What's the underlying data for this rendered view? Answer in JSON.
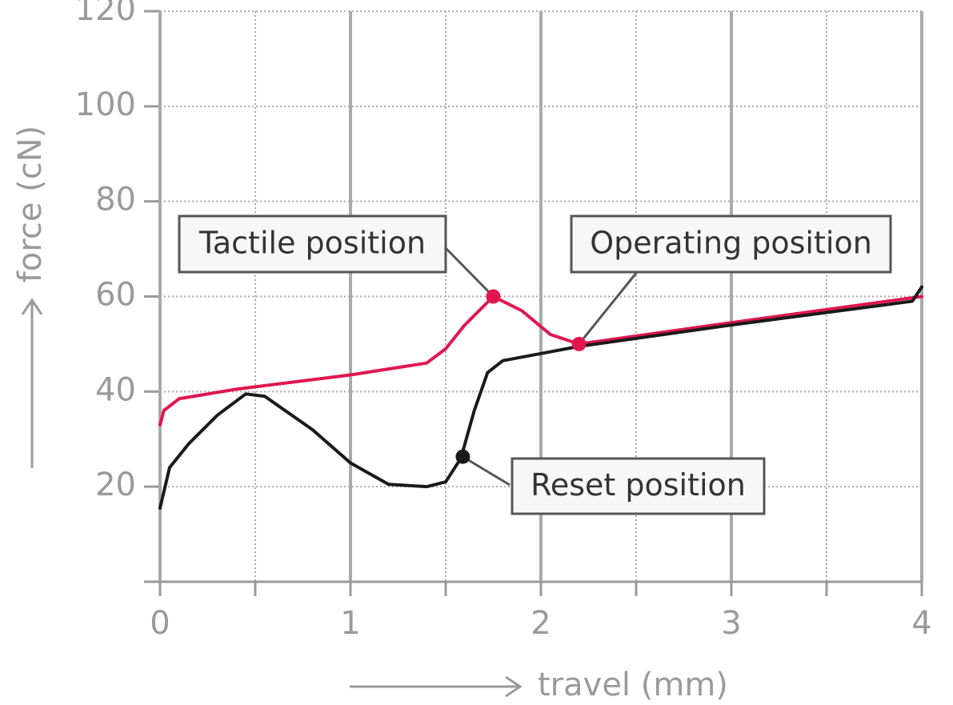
{
  "chart_data": {
    "type": "line",
    "x_label": "travel (mm)",
    "y_label": "force (cN)",
    "xlim": [
      0,
      4
    ],
    "xticks": [
      0,
      1,
      2,
      3,
      4
    ],
    "x_minor_ticks": [
      0.5,
      1.5,
      2.5,
      3.5
    ],
    "ylim": [
      0,
      120
    ],
    "yticks": [
      20,
      40,
      60,
      80,
      100,
      120
    ],
    "grid": true,
    "series": [
      {
        "color": "#e0174f",
        "x": [
          0,
          0.02,
          0.1,
          0.4,
          1.0,
          1.4,
          1.5,
          1.6,
          1.75,
          1.9,
          2.05,
          2.2,
          3,
          4
        ],
        "values": [
          33,
          36,
          38.5,
          40.5,
          43.5,
          46,
          49,
          54,
          60,
          57,
          52,
          50,
          54.5,
          60
        ]
      },
      {
        "color": "#1a1a1a",
        "x": [
          0,
          0.05,
          0.15,
          0.3,
          0.45,
          0.55,
          0.8,
          1.0,
          1.2,
          1.4,
          1.5,
          1.58,
          1.65,
          1.72,
          1.8,
          2.0,
          2.2,
          3,
          3.95,
          4
        ],
        "values": [
          15.5,
          24,
          29,
          35,
          39.5,
          39,
          32,
          25,
          20.5,
          20,
          21,
          26,
          36,
          44,
          46.5,
          48,
          49.5,
          54,
          59,
          62
        ]
      }
    ],
    "annotations": [
      {
        "text": "Tactile position",
        "x": 1.75,
        "y": 60,
        "color": "#e0174f"
      },
      {
        "text": "Operating position",
        "x": 2.2,
        "y": 50,
        "color": "#e0174f"
      },
      {
        "text": "Reset position",
        "x": 1.59,
        "y": 26.3,
        "color": "#1a1a1a"
      }
    ]
  }
}
